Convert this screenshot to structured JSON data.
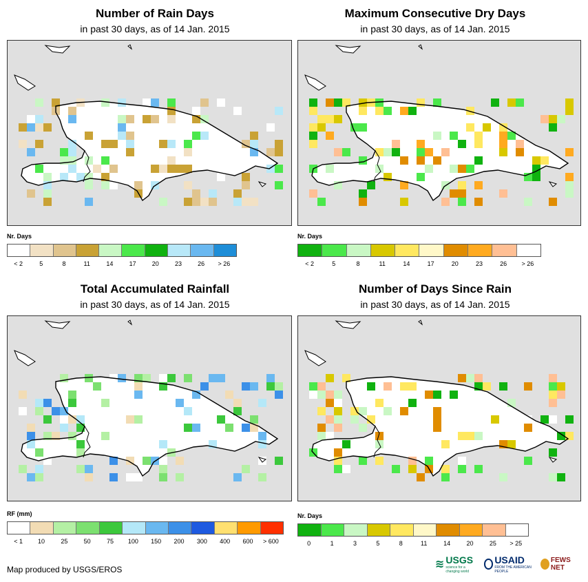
{
  "panels": [
    {
      "id": "rain-days",
      "title": "Number of Rain Days",
      "subtitle": "in past 30 days, as of 14 Jan. 2015",
      "legend_title": "Nr. Days",
      "legend_colors": [
        "#ffffff",
        "#f2e1c4",
        "#e0c48e",
        "#c9a235",
        "#c9f7c4",
        "#4be84b",
        "#10b210",
        "#b8e8f8",
        "#6ab8f0",
        "#1e8ed8"
      ],
      "legend_ticks": [
        "< 2",
        "5",
        "8",
        "11",
        "14",
        "17",
        "20",
        "23",
        "26",
        "> 26"
      ]
    },
    {
      "id": "max-dry-days",
      "title": "Maximum Consecutive Dry Days",
      "subtitle": "in past 30 days, as of 14 Jan. 2015",
      "legend_title": "Nr. Days",
      "legend_colors": [
        "#10b210",
        "#4be84b",
        "#c9f7c4",
        "#d8c800",
        "#ffe860",
        "#fff8c8",
        "#e08c00",
        "#ffaa20",
        "#ffbf94",
        "#ffffff"
      ],
      "legend_ticks": [
        "< 2",
        "5",
        "8",
        "11",
        "14",
        "17",
        "20",
        "23",
        "26",
        "> 26"
      ]
    },
    {
      "id": "total-rainfall",
      "title": "Total Accumulated Rainfall",
      "subtitle": "in past 30 days, as of 14 Jan. 2015",
      "legend_title": "RF (mm)",
      "legend_colors": [
        "#ffffff",
        "#f2dcb4",
        "#b4f0a4",
        "#7ce070",
        "#3cc83c",
        "#b4e8f8",
        "#6ab8f0",
        "#3c90e8",
        "#1e5ae0",
        "#ffe070",
        "#ff9a00",
        "#ff3000"
      ],
      "legend_ticks": [
        "< 1",
        "10",
        "25",
        "50",
        "75",
        "100",
        "150",
        "200",
        "300",
        "400",
        "600",
        "> 600"
      ]
    },
    {
      "id": "days-since-rain",
      "title": "Number of Days Since Rain",
      "subtitle": "in past 30 days, as of 14 Jan. 2015",
      "legend_title": "Nr. Days",
      "legend_colors": [
        "#10b210",
        "#4be84b",
        "#c9f7c4",
        "#d8c800",
        "#ffe860",
        "#fff8c8",
        "#e08c00",
        "#ffaa20",
        "#ffbf94",
        "#ffffff"
      ],
      "legend_ticks": [
        "0",
        "1",
        "3",
        "5",
        "8",
        "11",
        "14",
        "20",
        "25",
        "> 25"
      ]
    }
  ],
  "footer": "Map produced by USGS/EROS",
  "logos": {
    "usgs": "USGS",
    "usgs_tagline": "science for a changing world",
    "usaid": "USAID",
    "usaid_tagline": "FROM THE AMERICAN PEOPLE",
    "fews": "FEWS NET"
  }
}
